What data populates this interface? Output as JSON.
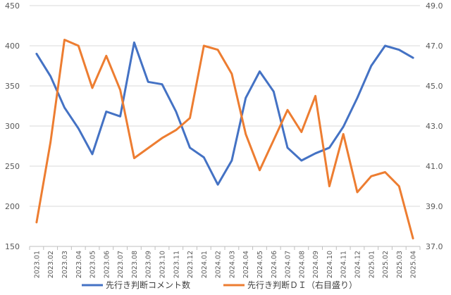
{
  "chart_data": {
    "type": "line",
    "title": "",
    "categories": [
      "2023.01",
      "2023.02",
      "2023.03",
      "2023.04",
      "2023.05",
      "2023.06",
      "2023.07",
      "2023.08",
      "2023.09",
      "2023.10",
      "2023.11",
      "2023.12",
      "2024.01",
      "2024.02",
      "2024.03",
      "2024.04",
      "2024.05",
      "2024.06",
      "2024.07",
      "2024.08",
      "2024.09",
      "2024.10",
      "2024.11",
      "2024.12",
      "2025.01",
      "2025.02",
      "2025.03",
      "2025.04"
    ],
    "left_axis": {
      "ylim": [
        150,
        450
      ],
      "ticks": [
        "150",
        "200",
        "250",
        "300",
        "350",
        "400",
        "450"
      ]
    },
    "right_axis": {
      "ylim": [
        37.0,
        49.0
      ],
      "ticks": [
        "37.0",
        "39.0",
        "41.0",
        "43.0",
        "45.0",
        "47.0",
        "49.0"
      ]
    },
    "grid": true,
    "legend_position": "bottom",
    "series": [
      {
        "name": "先行き判断コメント数",
        "axis": "left",
        "color": "#4472c4",
        "values": [
          390,
          362,
          323,
          297,
          265,
          318,
          312,
          404,
          355,
          352,
          318,
          273,
          261,
          227,
          257,
          335,
          368,
          343,
          273,
          257,
          266,
          273,
          299,
          335,
          375,
          400,
          395,
          385
        ]
      },
      {
        "name": "先行き判断ＤＩ（右目盛り）",
        "axis": "right",
        "color": "#ed7d31",
        "values": [
          38.2,
          42.2,
          47.3,
          47.0,
          44.9,
          46.5,
          44.8,
          41.4,
          41.9,
          42.4,
          42.8,
          43.4,
          47.0,
          46.8,
          45.6,
          42.6,
          40.8,
          42.3,
          43.8,
          42.7,
          44.5,
          40.0,
          42.6,
          39.7,
          40.5,
          40.7,
          40.0,
          37.4
        ]
      }
    ]
  }
}
